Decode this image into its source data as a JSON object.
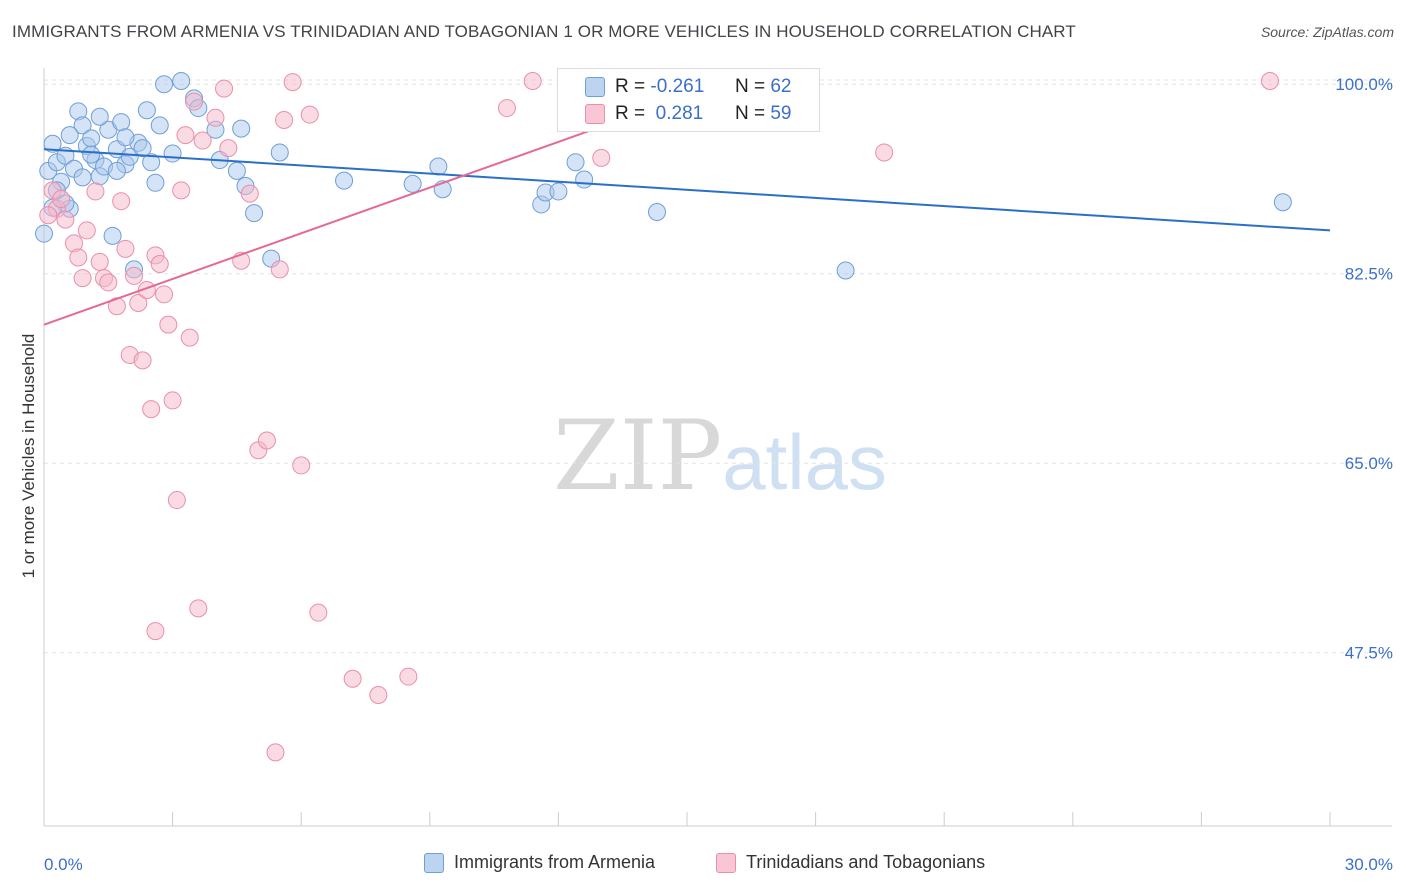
{
  "title": "IMMIGRANTS FROM ARMENIA VS TRINIDADIAN AND TOBAGONIAN 1 OR MORE VEHICLES IN HOUSEHOLD CORRELATION CHART",
  "source": "Source: ZipAtlas.com",
  "watermark": {
    "zip": "ZIP",
    "atlas": "atlas"
  },
  "legend_box": {
    "rows": [
      {
        "r_label": "R =",
        "r_value": "-0.261",
        "n_label": "N =",
        "n_value": "62"
      },
      {
        "r_label": "R =",
        "r_value": " 0.281",
        "n_label": "N =",
        "n_value": "59"
      }
    ]
  },
  "legend_bottom": [
    "Immigrants from Armenia",
    "Trinidadians and Tobagonians"
  ],
  "colors": {
    "blue_fill": "#a9c8ec",
    "blue_stroke": "#6f9fd8",
    "blue_line": "#2a6fcb",
    "pink_fill": "#f6b8ca",
    "pink_stroke": "#e98fab",
    "pink_line": "#e46a93",
    "tick_label": "#3b6fc9",
    "grid": "#e3e3e3"
  },
  "chart_data": {
    "type": "scatter",
    "title": "IMMIGRANTS FROM ARMENIA VS TRINIDADIAN AND TOBAGONIAN 1 OR MORE VEHICLES IN HOUSEHOLD CORRELATION CHART",
    "xlabel": "",
    "ylabel": "1 or more Vehicles in Household",
    "xlim": [
      0,
      30
    ],
    "ylim": [
      31.5,
      101.5
    ],
    "x_tick_labels": [
      "0.0%",
      "30.0%"
    ],
    "y_ticks": [
      100.0,
      82.5,
      65.0,
      47.5
    ],
    "y_tick_labels": [
      "100.0%",
      "82.5%",
      "65.0%",
      "47.5%"
    ],
    "grid": true,
    "legend_position": "bottom",
    "series": [
      {
        "name": "Immigrants from Armenia",
        "color": "#a9c8ec",
        "trend": {
          "x": [
            0,
            30
          ],
          "y": [
            94.0,
            86.5
          ]
        },
        "points": [
          [
            0.1,
            92.0
          ],
          [
            0.2,
            94.5
          ],
          [
            0.3,
            92.8
          ],
          [
            0.4,
            91.0
          ],
          [
            0.5,
            93.4
          ],
          [
            0.6,
            88.5
          ],
          [
            0.7,
            92.2
          ],
          [
            0.8,
            97.5
          ],
          [
            0.9,
            96.2
          ],
          [
            1.0,
            94.3
          ],
          [
            1.1,
            95.0
          ],
          [
            1.2,
            93.0
          ],
          [
            1.3,
            91.5
          ],
          [
            1.4,
            92.4
          ],
          [
            1.5,
            95.8
          ],
          [
            1.6,
            86.0
          ],
          [
            1.7,
            94.0
          ],
          [
            1.8,
            96.5
          ],
          [
            1.9,
            92.6
          ],
          [
            2.0,
            93.3
          ],
          [
            2.2,
            94.6
          ],
          [
            2.4,
            97.6
          ],
          [
            2.5,
            92.8
          ],
          [
            2.6,
            90.9
          ],
          [
            2.8,
            100.0
          ],
          [
            3.2,
            100.3
          ],
          [
            3.5,
            98.7
          ],
          [
            4.0,
            95.8
          ],
          [
            4.1,
            93.0
          ],
          [
            4.5,
            92.0
          ],
          [
            4.7,
            90.6
          ],
          [
            4.9,
            88.1
          ],
          [
            5.3,
            83.9
          ],
          [
            5.5,
            93.7
          ],
          [
            7.0,
            91.1
          ],
          [
            8.6,
            90.8
          ],
          [
            9.2,
            92.4
          ],
          [
            9.3,
            90.3
          ],
          [
            11.6,
            88.9
          ],
          [
            11.7,
            90.0
          ],
          [
            12.0,
            90.1
          ],
          [
            12.4,
            92.8
          ],
          [
            12.6,
            91.2
          ],
          [
            14.3,
            88.2
          ],
          [
            18.7,
            82.8
          ],
          [
            28.9,
            89.1
          ],
          [
            0.3,
            90.2
          ],
          [
            0.5,
            89.0
          ],
          [
            0.9,
            91.4
          ],
          [
            1.3,
            97.0
          ],
          [
            1.7,
            92.0
          ],
          [
            2.3,
            94.1
          ],
          [
            2.7,
            96.2
          ],
          [
            3.6,
            97.8
          ],
          [
            4.6,
            95.9
          ],
          [
            0.2,
            88.6
          ],
          [
            0.6,
            95.3
          ],
          [
            1.1,
            93.5
          ],
          [
            1.9,
            95.1
          ],
          [
            3.0,
            93.6
          ],
          [
            0.0,
            86.2
          ],
          [
            2.1,
            82.9
          ]
        ]
      },
      {
        "name": "Trinidadians and Tobagonians",
        "color": "#f6b8ca",
        "trend": {
          "x": [
            0,
            30
          ],
          "y": [
            77.8,
            120.0
          ]
        },
        "points": [
          [
            0.2,
            90.2
          ],
          [
            0.3,
            88.5
          ],
          [
            0.4,
            89.4
          ],
          [
            0.5,
            87.5
          ],
          [
            0.7,
            85.3
          ],
          [
            0.8,
            84.0
          ],
          [
            0.9,
            82.1
          ],
          [
            1.0,
            86.5
          ],
          [
            1.2,
            90.1
          ],
          [
            1.3,
            83.6
          ],
          [
            1.4,
            82.1
          ],
          [
            1.5,
            81.7
          ],
          [
            1.7,
            79.5
          ],
          [
            1.8,
            89.2
          ],
          [
            1.9,
            84.8
          ],
          [
            2.0,
            75.0
          ],
          [
            2.1,
            82.3
          ],
          [
            2.2,
            79.8
          ],
          [
            2.3,
            74.5
          ],
          [
            2.4,
            81.0
          ],
          [
            2.5,
            70.0
          ],
          [
            2.6,
            84.2
          ],
          [
            2.7,
            83.4
          ],
          [
            2.8,
            80.6
          ],
          [
            3.0,
            70.8
          ],
          [
            3.2,
            90.2
          ],
          [
            3.3,
            95.3
          ],
          [
            3.5,
            98.4
          ],
          [
            3.7,
            94.8
          ],
          [
            4.0,
            96.9
          ],
          [
            4.2,
            99.6
          ],
          [
            4.3,
            94.1
          ],
          [
            4.6,
            83.7
          ],
          [
            4.8,
            89.9
          ],
          [
            5.0,
            66.2
          ],
          [
            5.2,
            67.1
          ],
          [
            5.5,
            82.9
          ],
          [
            5.6,
            96.7
          ],
          [
            5.8,
            100.2
          ],
          [
            6.2,
            97.2
          ],
          [
            6.4,
            51.2
          ],
          [
            7.2,
            45.1
          ],
          [
            7.8,
            43.6
          ],
          [
            8.5,
            45.3
          ],
          [
            5.4,
            38.3
          ],
          [
            3.1,
            61.6
          ],
          [
            3.6,
            51.6
          ],
          [
            2.6,
            49.5
          ],
          [
            6.0,
            64.8
          ],
          [
            10.8,
            97.8
          ],
          [
            11.4,
            100.3
          ],
          [
            12.2,
            100.3
          ],
          [
            13.0,
            93.2
          ],
          [
            14.2,
            98.1
          ],
          [
            19.6,
            93.7
          ],
          [
            28.6,
            100.3
          ],
          [
            0.1,
            87.9
          ],
          [
            2.9,
            77.8
          ],
          [
            3.4,
            76.6
          ]
        ]
      }
    ]
  }
}
